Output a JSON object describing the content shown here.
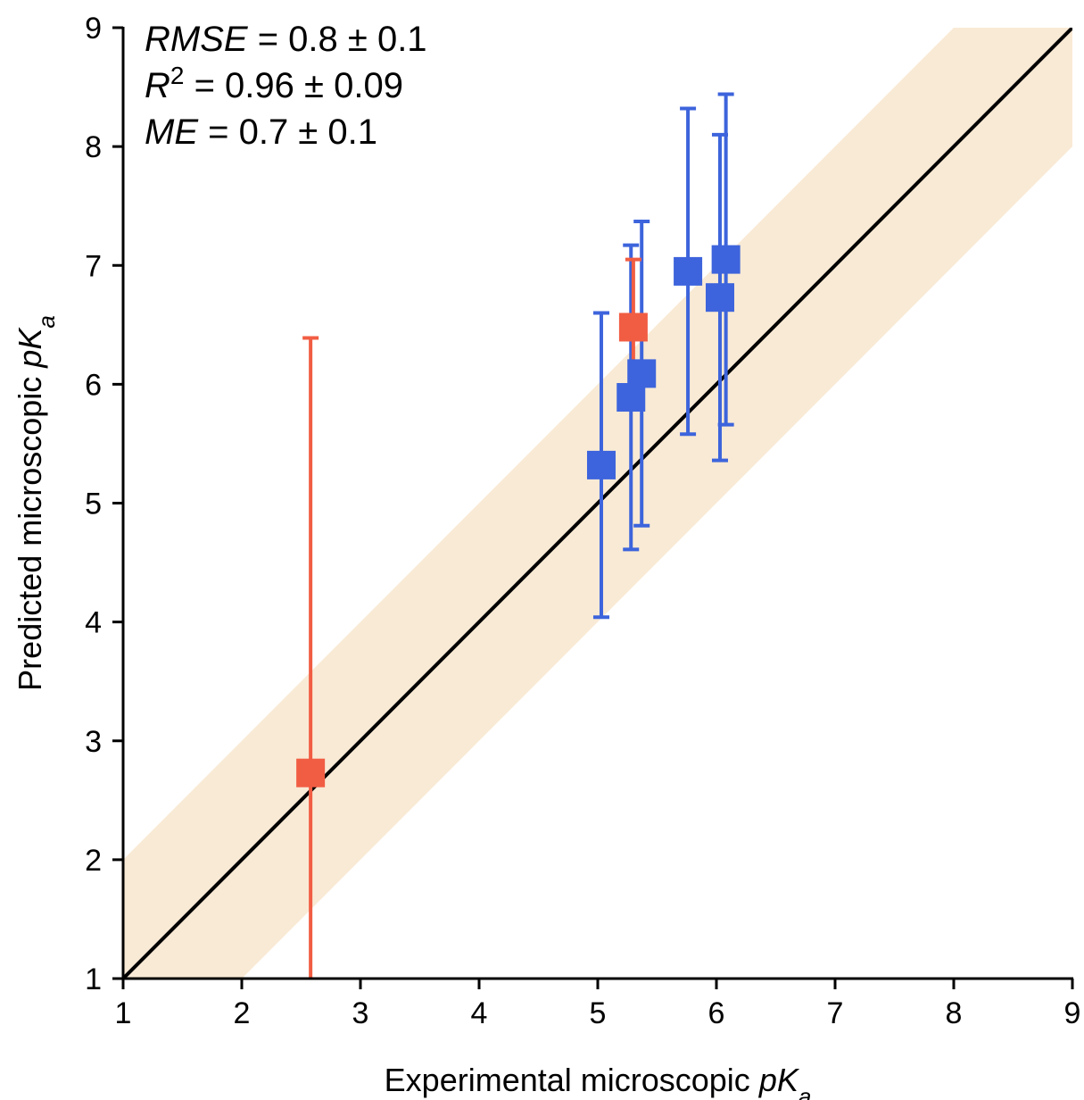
{
  "chart_data": {
    "type": "scatter",
    "xlabel": {
      "prefix": "Experimental microscopic ",
      "var": "pK",
      "sub": "a"
    },
    "ylabel": {
      "prefix": "Predicted microscopic ",
      "var": "pK",
      "sub": "a"
    },
    "xlim": [
      1,
      9
    ],
    "ylim": [
      1,
      9
    ],
    "xticks": [
      1,
      2,
      3,
      4,
      5,
      6,
      7,
      8,
      9
    ],
    "yticks": [
      1,
      2,
      3,
      4,
      5,
      6,
      7,
      8,
      9
    ],
    "grid": false,
    "identity_line": {
      "from": [
        1,
        1
      ],
      "to": [
        9,
        9
      ],
      "color": "#000000"
    },
    "band": {
      "offset": 1,
      "color": "#f9ead5"
    },
    "stats": [
      {
        "name": "RMSE",
        "sup": "",
        "value": "0.8 ± 0.1"
      },
      {
        "name": "R",
        "sup": "2",
        "value": "0.96 ± 0.09"
      },
      {
        "name": "ME",
        "sup": "",
        "value": "0.7 ± 0.1"
      }
    ],
    "series": [
      {
        "color": "#3d64dc",
        "points": [
          {
            "x": 5.03,
            "y": 5.32,
            "ylo": 4.04,
            "yhi": 6.6
          },
          {
            "x": 5.28,
            "y": 5.89,
            "ylo": 4.61,
            "yhi": 7.17
          },
          {
            "x": 5.37,
            "y": 6.09,
            "ylo": 4.81,
            "yhi": 7.37
          },
          {
            "x": 5.76,
            "y": 6.95,
            "ylo": 5.58,
            "yhi": 8.32
          },
          {
            "x": 6.03,
            "y": 6.73,
            "ylo": 5.36,
            "yhi": 8.1
          },
          {
            "x": 6.08,
            "y": 7.05,
            "ylo": 5.66,
            "yhi": 8.44
          }
        ]
      },
      {
        "color": "#f15d43",
        "points": [
          {
            "x": 2.58,
            "y": 2.73,
            "ylo": 1.0,
            "yhi": 6.39
          },
          {
            "x": 5.3,
            "y": 6.48,
            "ylo": 5.9,
            "yhi": 7.05
          }
        ]
      }
    ]
  }
}
